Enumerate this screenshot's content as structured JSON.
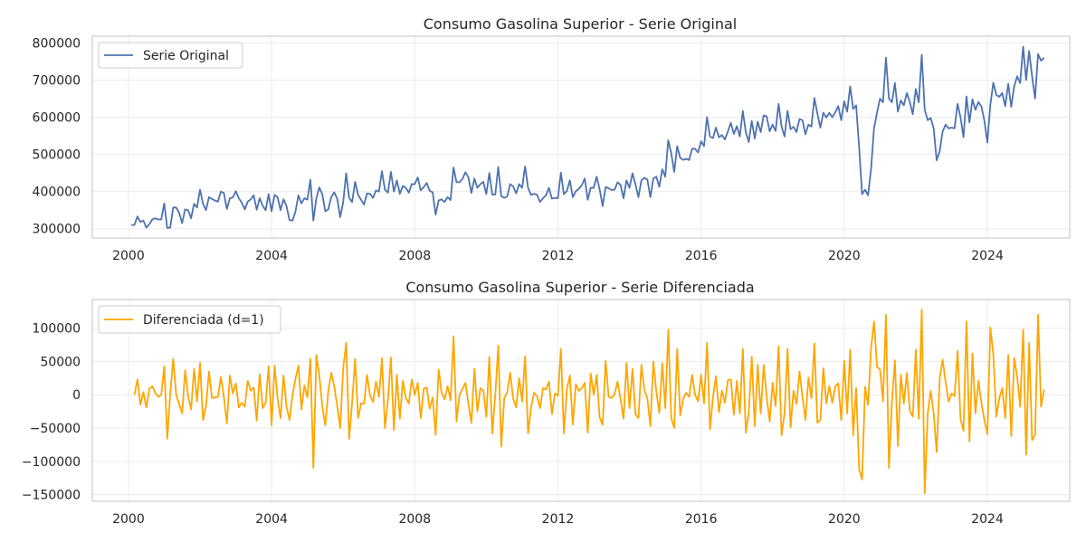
{
  "chart_data": [
    {
      "type": "line",
      "title": "Consumo Gasolina Superior - Serie Original",
      "xlabel": "",
      "ylabel": "",
      "xlim": [
        1998.99,
        2026.3
      ],
      "ylim": [
        275000,
        818000
      ],
      "xticks": [
        2000,
        2004,
        2008,
        2012,
        2016,
        2020,
        2024
      ],
      "xtick_labels": [
        "2000",
        "2004",
        "2008",
        "2012",
        "2016",
        "2020",
        "2024"
      ],
      "yticks": [
        300000,
        400000,
        500000,
        600000,
        700000,
        800000
      ],
      "ytick_labels": [
        "300000",
        "400000",
        "500000",
        "600000",
        "700000",
        "800000"
      ],
      "grid": true,
      "legend_position": "top-left",
      "series": [
        {
          "name": "Serie Original",
          "color": "#4c72b0",
          "x_start": 2000.083,
          "x_step": 0.08333,
          "values": [
            310000,
            310000,
            333000,
            318000,
            322000,
            303000,
            312000,
            325000,
            328000,
            325000,
            325000,
            368000,
            302000,
            303000,
            357000,
            357000,
            343000,
            315000,
            352000,
            350000,
            328000,
            367000,
            357000,
            405000,
            367000,
            350000,
            385000,
            380000,
            376000,
            373000,
            400000,
            396000,
            353000,
            382000,
            384000,
            401000,
            382000,
            370000,
            352000,
            373000,
            379000,
            390000,
            351000,
            382000,
            362000,
            350000,
            393000,
            347000,
            391000,
            385000,
            350000,
            379000,
            361000,
            323000,
            322000,
            346000,
            390000,
            368000,
            382000,
            378000,
            432000,
            322000,
            382000,
            411000,
            393000,
            347000,
            352000,
            385000,
            398000,
            381000,
            331000,
            371000,
            449000,
            383000,
            372000,
            426000,
            391000,
            378000,
            365000,
            395000,
            394000,
            383000,
            403000,
            400000,
            455000,
            405000,
            397000,
            453000,
            400000,
            430000,
            394000,
            415000,
            410000,
            397000,
            420000,
            420000,
            438000,
            403000,
            412000,
            423000,
            402000,
            398000,
            338000,
            376000,
            379000,
            372000,
            385000,
            377000,
            465000,
            425000,
            425000,
            434000,
            452000,
            438000,
            396000,
            435000,
            410000,
            420000,
            426000,
            393000,
            450000,
            392000,
            392000,
            466000,
            388000,
            383000,
            387000,
            420000,
            414000,
            395000,
            420000,
            410000,
            468000,
            410000,
            391000,
            394000,
            392000,
            372000,
            382000,
            390000,
            410000,
            381000,
            383000,
            382000,
            451000,
            393000,
            401000,
            430000,
            385000,
            401000,
            407000,
            417000,
            435000,
            378000,
            410000,
            410000,
            440000,
            406000,
            361000,
            412000,
            409000,
            404000,
            405000,
            425000,
            418000,
            382000,
            430000,
            410000,
            449000,
            420000,
            385000,
            430000,
            437000,
            432000,
            385000,
            435000,
            440000,
            413000,
            460000,
            440000,
            538000,
            503000,
            453000,
            522000,
            491000,
            485000,
            488000,
            485000,
            515000,
            515000,
            505000,
            535000,
            522000,
            600000,
            548000,
            544000,
            572000,
            546000,
            552000,
            540000,
            562000,
            585000,
            555000,
            576000,
            548000,
            617000,
            560000,
            533000,
            590000,
            543000,
            588000,
            560000,
            605000,
            602000,
            562000,
            580000,
            563000,
            636000,
            575000,
            548000,
            617000,
            568000,
            574000,
            560000,
            595000,
            592000,
            554000,
            580000,
            575000,
            652000,
            610000,
            572000,
            612000,
            599000,
            612000,
            600000,
            613000,
            630000,
            592000,
            643000,
            615000,
            683000,
            622000,
            632000,
            520000,
            393000,
            405000,
            390000,
            460000,
            570000,
            612000,
            650000,
            640000,
            760000,
            650000,
            640000,
            692000,
            615000,
            645000,
            632000,
            665000,
            641000,
            608000,
            676000,
            640000,
            768000,
            620000,
            592000,
            598000,
            570000,
            484000,
            508000,
            561000,
            580000,
            570000,
            572000,
            570000,
            636000,
            600000,
            546000,
            656000,
            586000,
            648000,
            620000,
            641000,
            629000,
            591000,
            532000,
            633000,
            693000,
            660000,
            655000,
            665000,
            630000,
            690000,
            628000,
            683000,
            710000,
            692000,
            790000,
            700000,
            778000,
            710000,
            650000,
            770000,
            752000,
            760000
          ]
        }
      ]
    },
    {
      "type": "line",
      "title": "Consumo Gasolina Superior - Serie Diferenciada",
      "xlabel": "",
      "ylabel": "",
      "xlim": [
        1998.99,
        2026.3
      ],
      "ylim": [
        -160000,
        143000
      ],
      "xticks": [
        2000,
        2004,
        2008,
        2012,
        2016,
        2020,
        2024
      ],
      "xtick_labels": [
        "2000",
        "2004",
        "2008",
        "2012",
        "2016",
        "2020",
        "2024"
      ],
      "yticks": [
        -150000,
        -100000,
        -50000,
        0,
        50000,
        100000
      ],
      "ytick_labels": [
        "−150000",
        "−100000",
        "−50000",
        "0",
        "50000",
        "100000"
      ],
      "grid": true,
      "legend_position": "top-left",
      "series": [
        {
          "name": "Diferenciada (d=1)",
          "color": "#ffa500",
          "x_start": 2000.167,
          "x_step": 0.08333,
          "values": [
            0,
            23000,
            -15000,
            4000,
            -19000,
            9000,
            13000,
            3000,
            -3000,
            0,
            43000,
            -66000,
            1000,
            54000,
            0,
            -14000,
            -28000,
            37000,
            -2000,
            -22000,
            39000,
            -10000,
            48000,
            -38000,
            -17000,
            35000,
            -5000,
            -4000,
            -3000,
            27000,
            -4000,
            -43000,
            29000,
            2000,
            17000,
            -19000,
            -12000,
            -18000,
            21000,
            6000,
            11000,
            -39000,
            31000,
            -20000,
            -12000,
            43000,
            -46000,
            44000,
            -6000,
            -35000,
            29000,
            -18000,
            -38000,
            -1000,
            24000,
            44000,
            -22000,
            14000,
            -4000,
            54000,
            -110000,
            60000,
            29000,
            -18000,
            -46000,
            5000,
            33000,
            13000,
            -17000,
            -50000,
            40000,
            78000,
            -66000,
            -11000,
            54000,
            -35000,
            -13000,
            -13000,
            30000,
            -1000,
            -11000,
            20000,
            -3000,
            55000,
            -50000,
            -8000,
            56000,
            -53000,
            30000,
            -36000,
            21000,
            -5000,
            -13000,
            23000,
            0,
            18000,
            -35000,
            9000,
            11000,
            -21000,
            -4000,
            -60000,
            38000,
            3000,
            -7000,
            13000,
            -8000,
            88000,
            -40000,
            0,
            9000,
            18000,
            -14000,
            -42000,
            39000,
            -25000,
            10000,
            6000,
            -33000,
            57000,
            -58000,
            0,
            74000,
            -78000,
            -5000,
            4000,
            33000,
            -6000,
            -19000,
            25000,
            -10000,
            58000,
            -58000,
            -19000,
            3000,
            -2000,
            -20000,
            10000,
            8000,
            20000,
            -29000,
            2000,
            -1000,
            69000,
            -58000,
            8000,
            29000,
            -45000,
            16000,
            6000,
            10000,
            18000,
            -57000,
            32000,
            0,
            30000,
            -34000,
            -45000,
            51000,
            -3000,
            -5000,
            1000,
            20000,
            -7000,
            -36000,
            48000,
            -20000,
            39000,
            -29000,
            -35000,
            45000,
            7000,
            -5000,
            -47000,
            50000,
            5000,
            -27000,
            47000,
            -20000,
            98000,
            -35000,
            -50000,
            69000,
            -31000,
            -6000,
            3000,
            -3000,
            30000,
            0,
            -10000,
            30000,
            -13000,
            78000,
            -52000,
            -4000,
            28000,
            -26000,
            6000,
            -12000,
            22000,
            23000,
            -30000,
            21000,
            -28000,
            69000,
            -57000,
            -27000,
            57000,
            -47000,
            45000,
            -28000,
            45000,
            -3000,
            -40000,
            18000,
            -17000,
            73000,
            -61000,
            -27000,
            69000,
            -49000,
            6000,
            -14000,
            35000,
            -3000,
            -38000,
            26000,
            -5000,
            77000,
            -42000,
            -38000,
            40000,
            -13000,
            13000,
            -12000,
            13000,
            17000,
            -38000,
            51000,
            -28000,
            68000,
            -61000,
            10000,
            -112000,
            -127000,
            12000,
            -15000,
            70000,
            110000,
            42000,
            38000,
            -10000,
            120000,
            -110000,
            -10000,
            52000,
            -77000,
            30000,
            -13000,
            33000,
            -24000,
            -33000,
            68000,
            -36000,
            128000,
            -148000,
            -28000,
            6000,
            -28000,
            -86000,
            24000,
            53000,
            19000,
            -10000,
            2000,
            -2000,
            66000,
            -36000,
            -54000,
            110000,
            -70000,
            62000,
            -28000,
            21000,
            -12000,
            -38000,
            -59000,
            101000,
            60000,
            -33000,
            -5000,
            10000,
            -35000,
            60000,
            -62000,
            55000,
            27000,
            -18000,
            98000,
            -90000,
            78000,
            -68000,
            -60000,
            120000,
            -18000,
            8000
          ]
        }
      ]
    }
  ]
}
